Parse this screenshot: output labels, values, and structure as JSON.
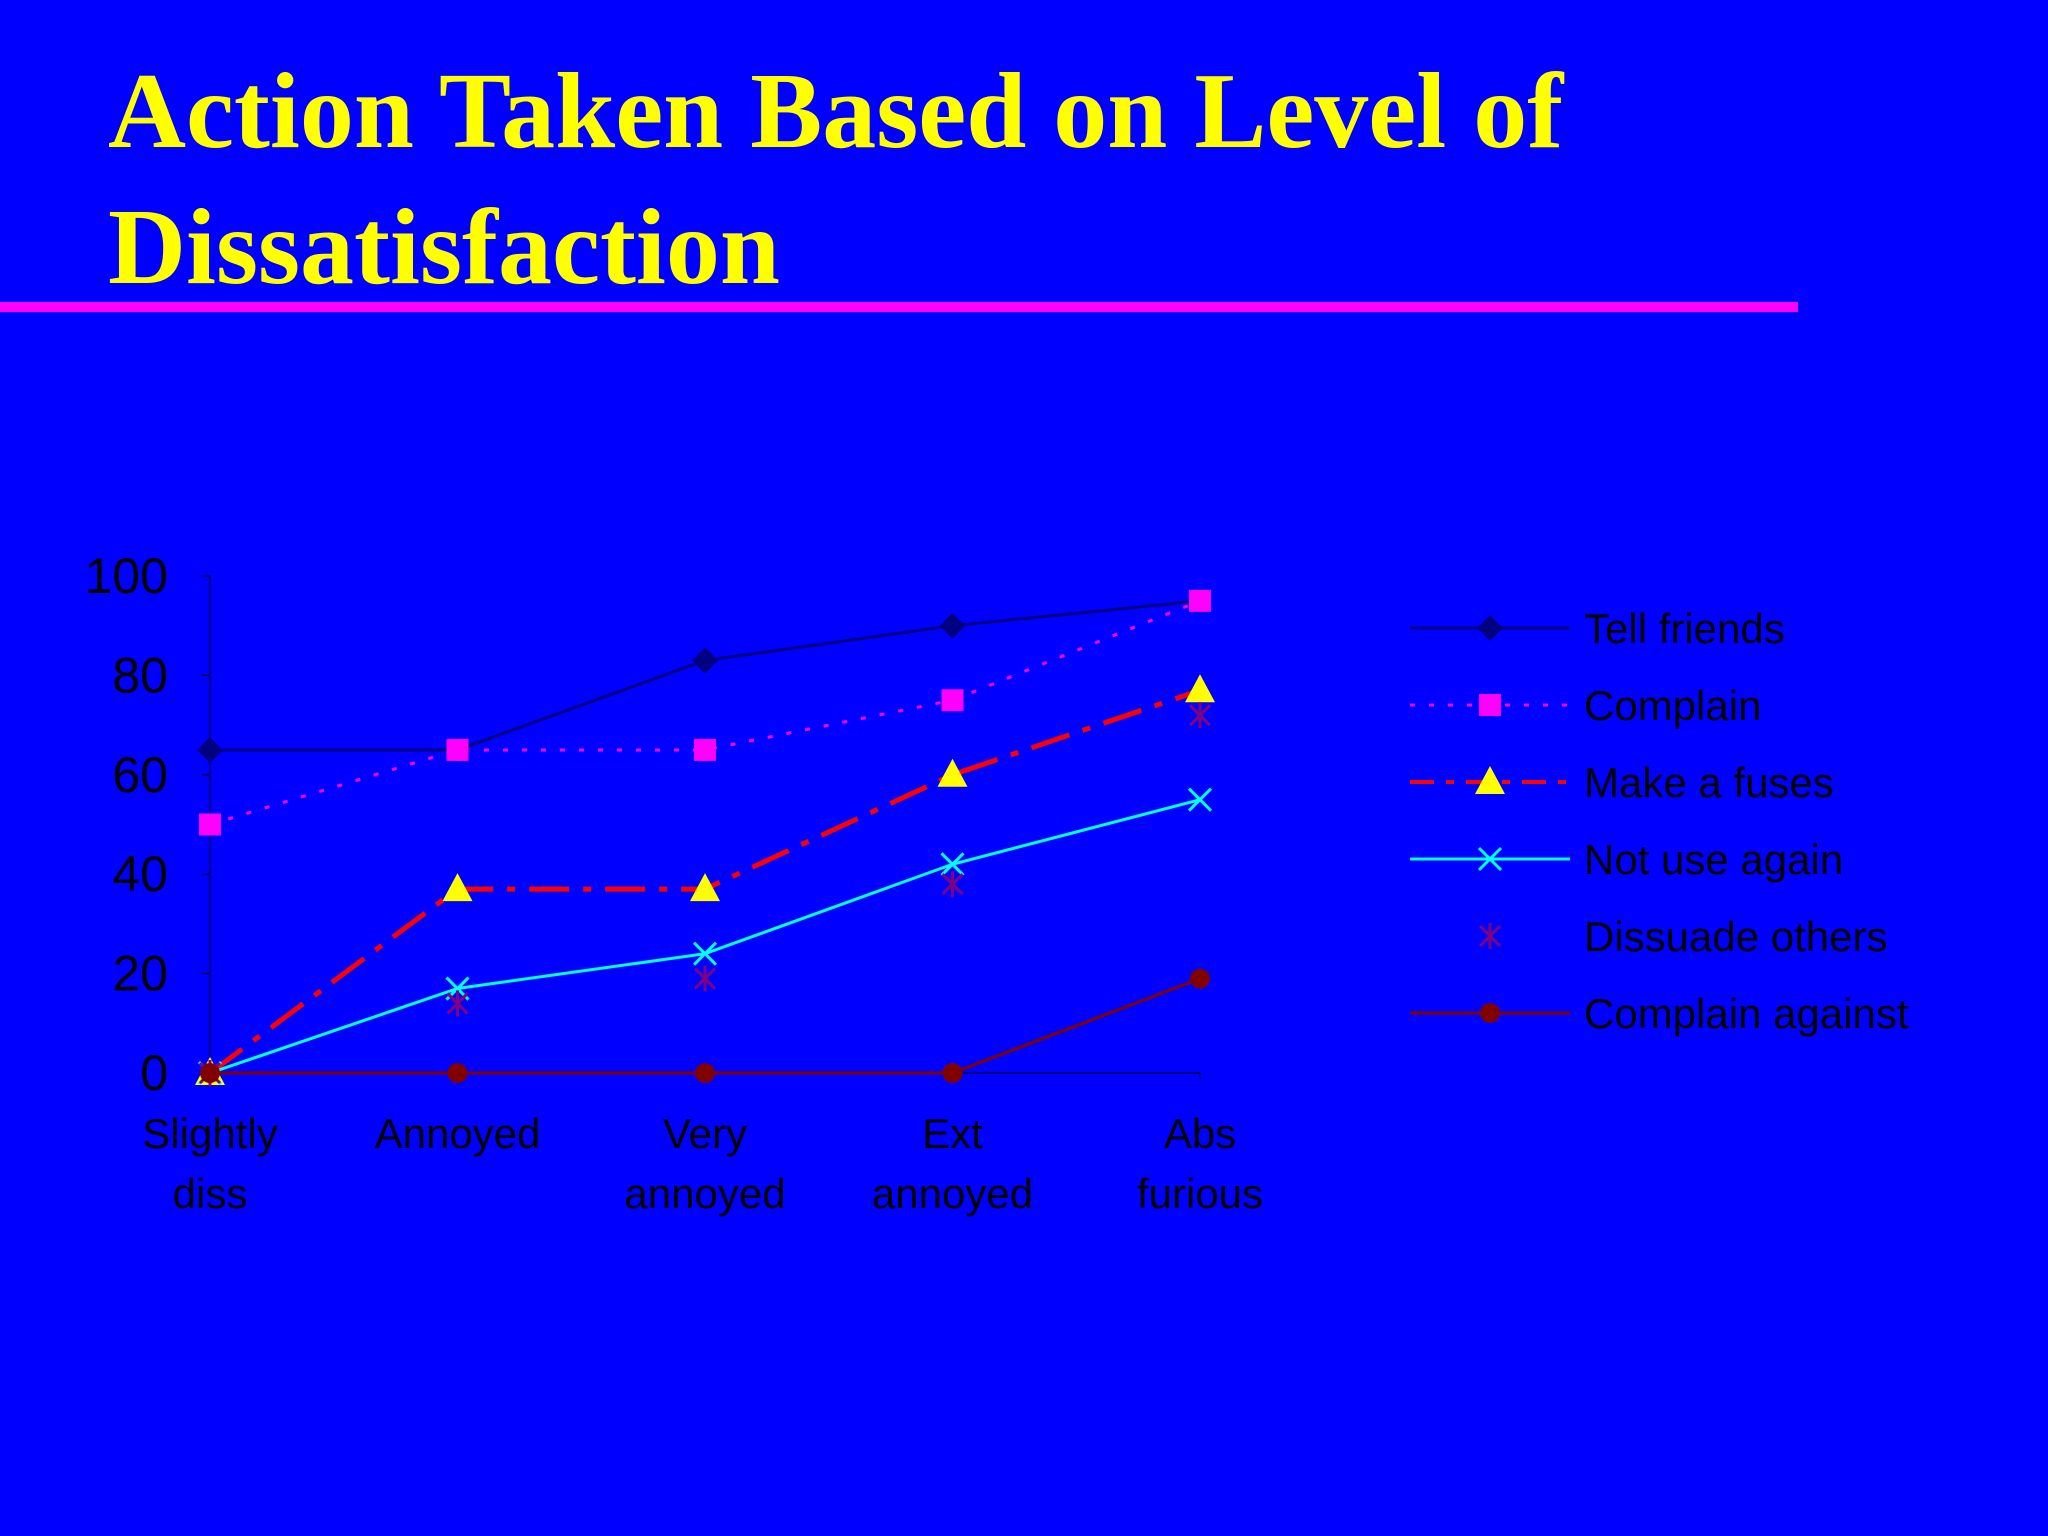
{
  "slide": {
    "title": "Action Taken Based on Level of Dissatisfaction"
  },
  "colors": {
    "background": "#0000FF",
    "title": "#FFFF00",
    "title_rule": "#FF00FF",
    "axis_text": "#000000"
  },
  "chart_data": {
    "type": "line",
    "title": "",
    "xlabel": "",
    "ylabel": "",
    "categories": [
      [
        "Slightly",
        "diss"
      ],
      [
        "Annoyed"
      ],
      [
        "Very",
        "annoyed"
      ],
      [
        "Ext",
        "annoyed"
      ],
      [
        "Abs",
        "furious"
      ]
    ],
    "ylim": [
      0,
      100
    ],
    "yticks": [
      0,
      20,
      40,
      60,
      80,
      100
    ],
    "grid": false,
    "legend_position": "right",
    "series": [
      {
        "name": "Tell friends",
        "values": [
          65,
          65,
          83,
          90,
          95
        ],
        "color": "#000080",
        "line": "solid",
        "marker": "diamond",
        "marker_color": "#000080"
      },
      {
        "name": "Complain",
        "values": [
          50,
          65,
          65,
          75,
          95
        ],
        "color": "#FF00FF",
        "line": "dotted",
        "marker": "square",
        "marker_color": "#FF00FF"
      },
      {
        "name": "Make a fuses",
        "values": [
          0,
          37,
          37,
          60,
          77
        ],
        "color": "#FF0000",
        "line": "dashdot",
        "marker": "triangle",
        "marker_color": "#FFFF00"
      },
      {
        "name": "Not use again",
        "values": [
          0,
          17,
          24,
          42,
          55
        ],
        "color": "#00FFFF",
        "line": "solid",
        "marker": "x",
        "marker_color": "#00FFFF"
      },
      {
        "name": "Dissuade others",
        "values": [
          0,
          14,
          19,
          38,
          72
        ],
        "color": "#800080",
        "line": "none",
        "marker": "asterisk",
        "marker_color": "#800080"
      },
      {
        "name": "Complain against",
        "values": [
          0,
          0,
          0,
          0,
          19
        ],
        "color": "#800000",
        "line": "solid",
        "marker": "circle",
        "marker_color": "#800000"
      }
    ]
  }
}
